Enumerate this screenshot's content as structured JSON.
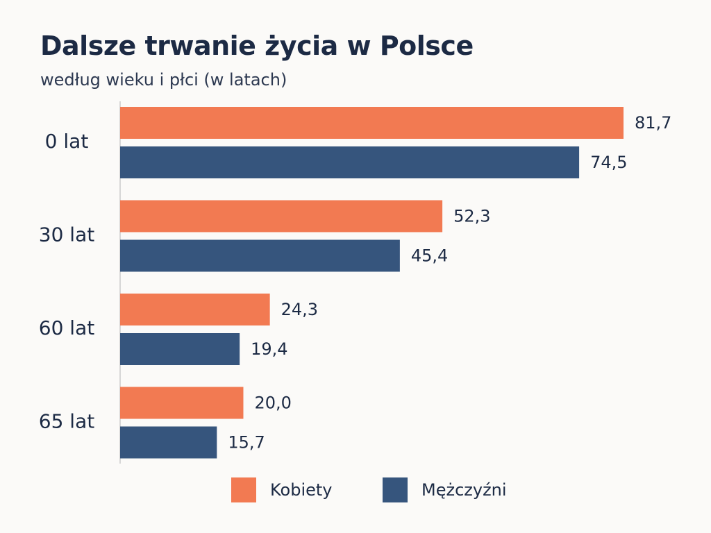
{
  "chart_data": {
    "type": "bar",
    "orientation": "horizontal",
    "title": "Dalsze trwanie życia w Polsce",
    "subtitle": "według wieku i płci (w latach)",
    "xlabel": "",
    "ylabel": "",
    "categories": [
      "0 lat",
      "30 lat",
      "60 lat",
      "65 lat"
    ],
    "series": [
      {
        "name": "Kobiety",
        "color": "#f27a52",
        "values": [
          81.7,
          52.3,
          24.3,
          20.0
        ],
        "labels": [
          "81,7",
          "52,3",
          "24,3",
          "20,0"
        ]
      },
      {
        "name": "Mężczyźni",
        "color": "#36557d",
        "values": [
          74.5,
          45.4,
          19.4,
          15.7
        ],
        "labels": [
          "74,5",
          "45,4",
          "19,4",
          "15,7"
        ]
      }
    ],
    "xlim": [
      0,
      81.7
    ],
    "grid": false,
    "legend_position": "bottom"
  }
}
